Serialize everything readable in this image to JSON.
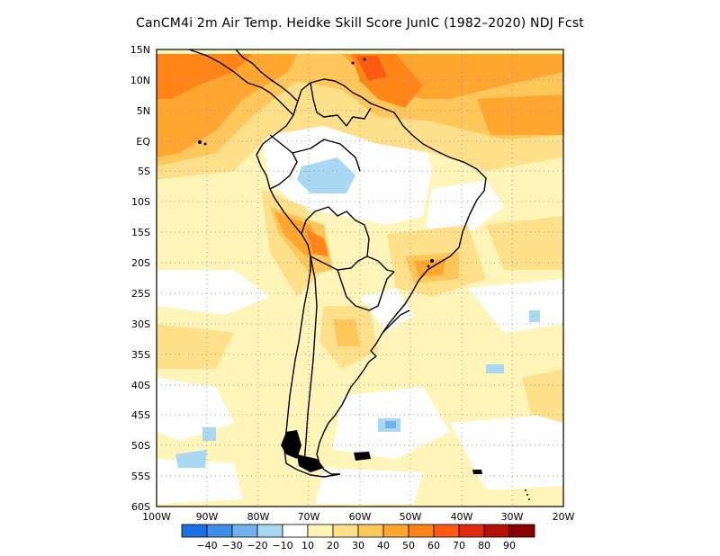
{
  "title": "CanCM4i  2m Air Temp. Heidke Skill Score JunIC (1982–2020) NDJ Fcst",
  "map": {
    "lat_labels": [
      "15N",
      "10N",
      "5N",
      "EQ",
      "5S",
      "10S",
      "15S",
      "20S",
      "25S",
      "30S",
      "35S",
      "40S",
      "45S",
      "50S",
      "55S",
      "60S"
    ],
    "lon_labels": [
      "100W",
      "90W",
      "80W",
      "70W",
      "60W",
      "50W",
      "40W",
      "30W",
      "20W"
    ],
    "grid": "dotted"
  },
  "colorbar": {
    "labels": [
      "−40",
      "−30",
      "−20",
      "−10",
      "10",
      "20",
      "30",
      "40",
      "50",
      "60",
      "70",
      "80",
      "90"
    ],
    "colors": [
      "#1c6fe0",
      "#3e8ee8",
      "#73b0ee",
      "#a8d8f2",
      "#ffffff",
      "#fff5b8",
      "#ffe08a",
      "#ffc65a",
      "#ffa630",
      "#ff8519",
      "#ff5a12",
      "#e02a10",
      "#b51008",
      "#8a0000"
    ]
  }
}
